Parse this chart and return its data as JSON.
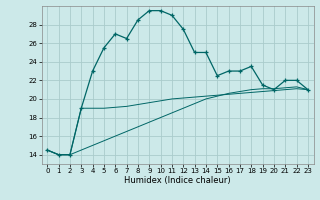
{
  "xlabel": "Humidex (Indice chaleur)",
  "background_color": "#cce9e9",
  "grid_color": "#aacccc",
  "line_color": "#006666",
  "xlim": [
    -0.5,
    23.5
  ],
  "ylim": [
    13.0,
    30.0
  ],
  "yticks": [
    14,
    16,
    18,
    20,
    22,
    24,
    26,
    28
  ],
  "xticks": [
    0,
    1,
    2,
    3,
    4,
    5,
    6,
    7,
    8,
    9,
    10,
    11,
    12,
    13,
    14,
    15,
    16,
    17,
    18,
    19,
    20,
    21,
    22,
    23
  ],
  "series1_x": [
    0,
    1,
    2,
    3,
    4,
    5,
    6,
    7,
    8,
    9,
    10,
    11,
    12,
    13,
    14,
    15,
    16,
    17,
    18,
    19,
    20,
    21,
    22,
    23
  ],
  "series1_y": [
    14.5,
    14.0,
    14.0,
    19.0,
    23.0,
    25.5,
    27.0,
    26.5,
    28.5,
    29.5,
    29.5,
    29.0,
    27.5,
    25.0,
    25.0,
    22.5,
    23.0,
    23.0,
    23.5,
    21.5,
    21.0,
    22.0,
    22.0,
    21.0
  ],
  "series2_x": [
    0,
    1,
    2,
    3,
    4,
    5,
    6,
    7,
    8,
    9,
    10,
    11,
    12,
    13,
    14,
    15,
    16,
    17,
    18,
    19,
    20,
    21,
    22,
    23
  ],
  "series2_y": [
    14.5,
    14.0,
    14.0,
    19.0,
    19.0,
    19.0,
    19.1,
    19.2,
    19.4,
    19.6,
    19.8,
    20.0,
    20.1,
    20.2,
    20.3,
    20.4,
    20.5,
    20.6,
    20.7,
    20.8,
    20.9,
    21.0,
    21.1,
    21.0
  ],
  "series3_x": [
    0,
    1,
    2,
    3,
    4,
    5,
    6,
    7,
    8,
    9,
    10,
    11,
    12,
    13,
    14,
    15,
    16,
    17,
    18,
    19,
    20,
    21,
    22,
    23
  ],
  "series3_y": [
    14.5,
    14.0,
    14.0,
    14.5,
    15.0,
    15.5,
    16.0,
    16.5,
    17.0,
    17.5,
    18.0,
    18.5,
    19.0,
    19.5,
    20.0,
    20.3,
    20.6,
    20.8,
    21.0,
    21.1,
    21.1,
    21.2,
    21.3,
    21.0
  ],
  "xlabel_fontsize": 6,
  "tick_fontsize": 5
}
